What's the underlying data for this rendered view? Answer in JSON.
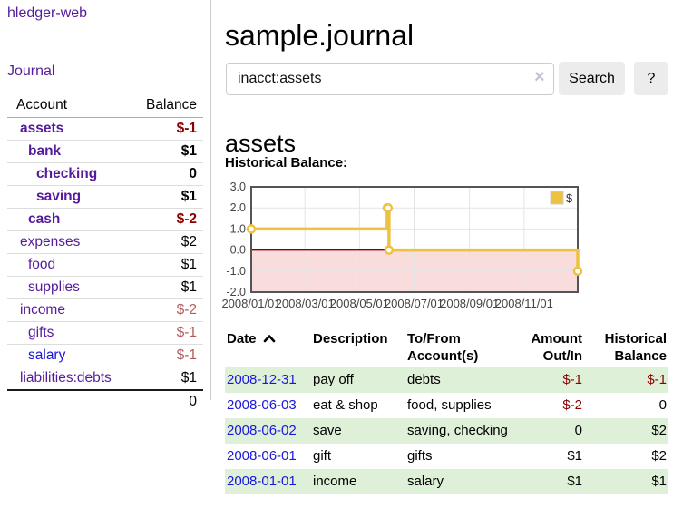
{
  "sidebar": {
    "app_title": "hledger-web",
    "journal_label": "Journal",
    "accounts_table": {
      "headers": {
        "account": "Account",
        "balance": "Balance"
      },
      "rows": [
        {
          "label": "assets",
          "indent": 1,
          "bold": true,
          "balance": "$-1",
          "balance_tone": "negative",
          "balance_bold": true
        },
        {
          "label": "bank",
          "indent": 2,
          "bold": true,
          "balance": "$1",
          "balance_tone": "normal",
          "balance_bold": true
        },
        {
          "label": "checking",
          "indent": 3,
          "bold": true,
          "balance": "0",
          "balance_tone": "normal",
          "balance_bold": true
        },
        {
          "label": "saving",
          "indent": 3,
          "bold": true,
          "balance": "$1",
          "balance_tone": "normal",
          "balance_bold": true
        },
        {
          "label": "cash",
          "indent": 2,
          "bold": true,
          "balance": "$-2",
          "balance_tone": "negative",
          "balance_bold": true
        },
        {
          "label": "expenses",
          "indent": 1,
          "bold": false,
          "balance": "$2",
          "balance_tone": "normal",
          "balance_bold": false
        },
        {
          "label": "food",
          "indent": 2,
          "bold": false,
          "balance": "$1",
          "balance_tone": "normal",
          "balance_bold": false
        },
        {
          "label": "supplies",
          "indent": 2,
          "bold": false,
          "balance": "$1",
          "balance_tone": "normal",
          "balance_bold": false
        },
        {
          "label": "income",
          "indent": 1,
          "bold": false,
          "balance": "$-2",
          "balance_tone": "negative-soft",
          "balance_bold": false
        },
        {
          "label": "gifts",
          "indent": 2,
          "bold": false,
          "balance": "$-1",
          "balance_tone": "negative-soft",
          "balance_bold": false
        },
        {
          "label": "salary",
          "indent": 2,
          "bold": false,
          "link_tone": "unvisited",
          "balance": "$-1",
          "balance_tone": "negative-soft",
          "balance_bold": false
        },
        {
          "label": "liabilities:debts",
          "indent": 1,
          "bold": false,
          "balance": "$1",
          "balance_tone": "normal",
          "balance_bold": false
        }
      ],
      "total": "0"
    }
  },
  "header": {
    "title": "sample.journal"
  },
  "search": {
    "value": "inacct:assets",
    "clear_icon": "×",
    "search_label": "Search",
    "help_label": "?"
  },
  "account_page": {
    "heading": "assets",
    "chart_label": "Historical Balance:"
  },
  "chart_data": {
    "type": "line",
    "step": true,
    "title": "Historical Balance:",
    "x": [
      "2008-01-01",
      "2008-06-01",
      "2008-06-02",
      "2008-06-03",
      "2008-12-31"
    ],
    "series": [
      {
        "name": "$",
        "values": [
          1,
          2,
          2,
          0,
          -1
        ]
      }
    ],
    "xlim": [
      "2008-01-01",
      "2008-12-31"
    ],
    "ylim": [
      -2,
      3
    ],
    "y_ticks": [
      3,
      2,
      1,
      0,
      -1,
      -2
    ],
    "y_tick_labels": [
      "3.0",
      "2.0",
      "1.0",
      "0.0",
      "-1.0",
      "-2.0"
    ],
    "x_tick_dates": [
      "2008-01-01",
      "2008-03-01",
      "2008-05-01",
      "2008-07-01",
      "2008-09-01",
      "2008-11-01"
    ],
    "x_tick_labels": [
      "2008/01/01",
      "2008/03/01",
      "2008/05/01",
      "2008/07/01",
      "2008/09/01",
      "2008/11/01"
    ],
    "legend": [
      {
        "label": "$",
        "color": "#edc240"
      }
    ],
    "legend_position": "top-right",
    "grid": true,
    "line_color": "#edc240",
    "zero_line_color": "#8b0000",
    "negative_region_color": "#f9dcdc"
  },
  "transactions": {
    "columns": [
      {
        "label": "Date",
        "align": "left",
        "sorted": "asc",
        "sort_icon": "chevron-up"
      },
      {
        "label": "Description",
        "align": "left"
      },
      {
        "label": "To/From Account(s)",
        "align": "left"
      },
      {
        "label": "Amount Out/In",
        "align": "right"
      },
      {
        "label": "Historical Balance",
        "align": "right"
      }
    ],
    "rows": [
      {
        "date": "2008-12-31",
        "description": "pay off",
        "accounts": "debts",
        "amount": "$-1",
        "amount_tone": "negative",
        "balance": "$-1",
        "balance_tone": "negative"
      },
      {
        "date": "2008-06-03",
        "description": "eat & shop",
        "accounts": "food, supplies",
        "amount": "$-2",
        "amount_tone": "negative",
        "balance": "0",
        "balance_tone": "normal"
      },
      {
        "date": "2008-06-02",
        "description": "save",
        "accounts": "saving, checking",
        "amount": "0",
        "amount_tone": "normal",
        "balance": "$2",
        "balance_tone": "normal"
      },
      {
        "date": "2008-06-01",
        "description": "gift",
        "accounts": "gifts",
        "amount": "$1",
        "amount_tone": "normal",
        "balance": "$2",
        "balance_tone": "normal"
      },
      {
        "date": "2008-01-01",
        "description": "income",
        "accounts": "salary",
        "amount": "$1",
        "amount_tone": "normal",
        "balance": "$1",
        "balance_tone": "normal"
      }
    ]
  },
  "colors": {
    "link_purple": "#551b9a",
    "link_blue": "#1a17dd",
    "negative_strong": "#8b0000",
    "negative_soft": "#b05d5d",
    "table_stripe_green": "#dff0d8",
    "chart_line_yellow": "#edc240",
    "chart_border_gray": "#545454",
    "chart_zero_line_red": "#8b0000",
    "chart_negative_fill_pink": "#f9dcdc",
    "button_gray": "#ececec",
    "divider_gray": "#cccccc"
  }
}
